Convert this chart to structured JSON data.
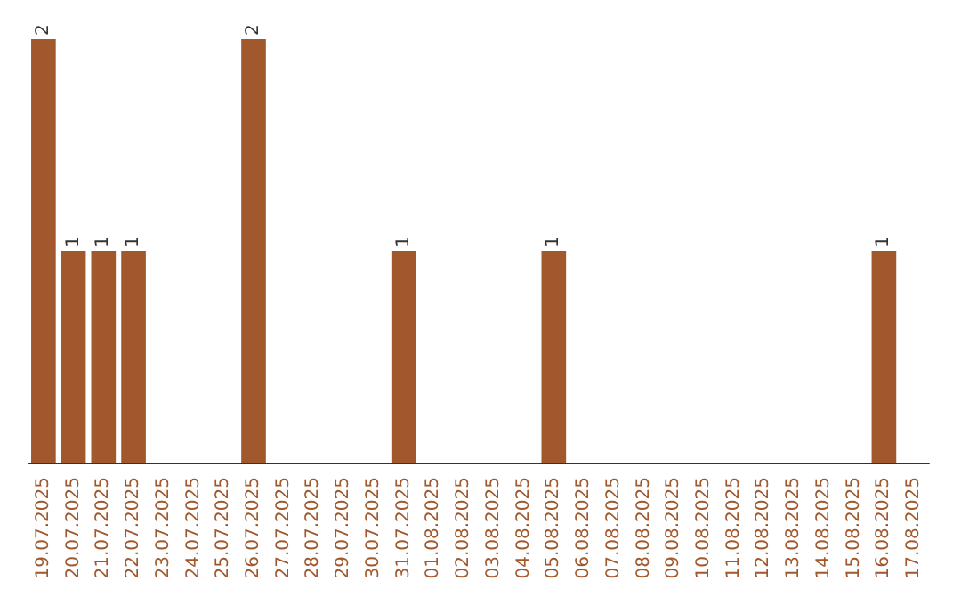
{
  "chart_data": {
    "type": "bar",
    "categories": [
      "19.07.2025",
      "20.07.2025",
      "21.07.2025",
      "22.07.2025",
      "23.07.2025",
      "24.07.2025",
      "25.07.2025",
      "26.07.2025",
      "27.07.2025",
      "28.07.2025",
      "29.07.2025",
      "30.07.2025",
      "31.07.2025",
      "01.08.2025",
      "02.08.2025",
      "03.08.2025",
      "04.08.2025",
      "05.08.2025",
      "06.08.2025",
      "07.08.2025",
      "08.08.2025",
      "09.08.2025",
      "10.08.2025",
      "11.08.2025",
      "12.08.2025",
      "13.08.2025",
      "14.08.2025",
      "15.08.2025",
      "16.08.2025",
      "17.08.2025"
    ],
    "values": [
      2,
      1,
      1,
      1,
      0,
      0,
      0,
      2,
      0,
      0,
      0,
      0,
      1,
      0,
      0,
      0,
      0,
      1,
      0,
      0,
      0,
      0,
      0,
      0,
      0,
      0,
      0,
      0,
      1,
      0
    ],
    "value_labels": [
      "2",
      "1",
      "1",
      "1",
      null,
      null,
      null,
      "2",
      null,
      null,
      null,
      null,
      "1",
      null,
      null,
      null,
      null,
      "1",
      null,
      null,
      null,
      null,
      null,
      null,
      null,
      null,
      null,
      null,
      "1",
      null
    ],
    "color": "#a0582c",
    "tick_labels": "x"
  }
}
